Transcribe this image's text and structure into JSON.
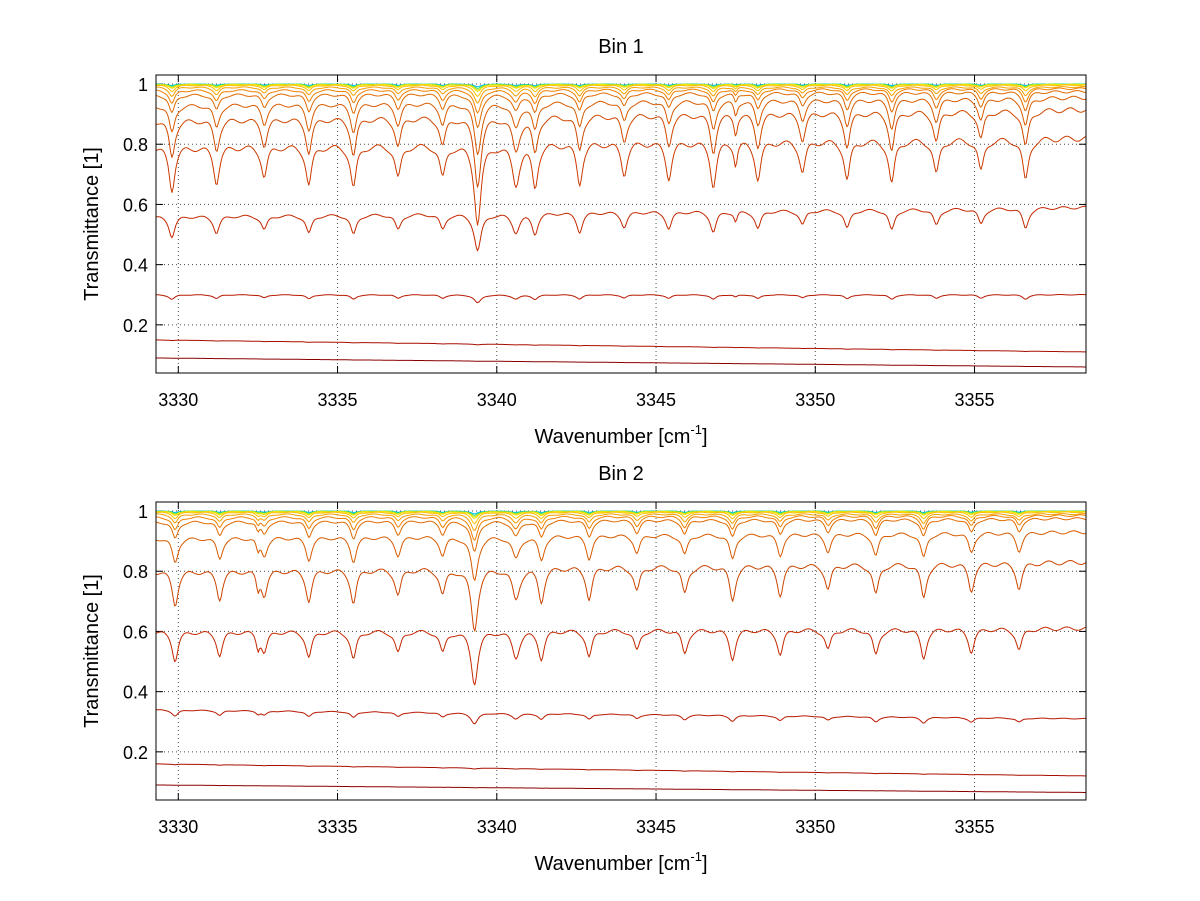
{
  "chart_data": [
    {
      "type": "line",
      "title": "Bin 1",
      "xlabel": "Wavenumber [cm",
      "xlabel_sup": "-1",
      "xlabel_suffix": "]",
      "ylabel": "Transmittance [1]",
      "xlim": [
        3329.3,
        3358.5
      ],
      "ylim": [
        0.04,
        1.03
      ],
      "xticks": [
        3330,
        3335,
        3340,
        3345,
        3350,
        3355
      ],
      "yticks": [
        0.2,
        0.4,
        0.6,
        0.8,
        1
      ],
      "ytick_labels": [
        "0.2",
        "0.4",
        "0.6",
        "0.8",
        "1"
      ],
      "grid": true,
      "line_spacing": 1.42,
      "line_centers": [
        3329.8,
        3331.2,
        3332.7,
        3334.1,
        3335.5,
        3336.9,
        3338.3,
        3341.2,
        3342.6,
        3344.0,
        3345.4,
        3346.8,
        3348.2,
        3349.6,
        3351.0,
        3352.4,
        3353.8,
        3355.2,
        3356.6
      ],
      "strong_line": 3339.4,
      "secondary_line": 3340.6,
      "extra_line": 3347.5,
      "series": [
        {
          "baseline": [
            1.0,
            1.0
          ],
          "depth": 0.005,
          "color": "#00bfff"
        },
        {
          "baseline": [
            1.0,
            1.0
          ],
          "depth": 0.008,
          "color": "#33dd66"
        },
        {
          "baseline": [
            0.999,
            0.999
          ],
          "depth": 0.01,
          "color": "#d8e61a"
        },
        {
          "baseline": [
            0.998,
            0.998
          ],
          "depth": 0.012,
          "color": "#f2e000"
        },
        {
          "baseline": [
            0.996,
            0.996
          ],
          "depth": 0.02,
          "color": "#ffc000"
        },
        {
          "baseline": [
            0.99,
            0.99
          ],
          "depth": 0.03,
          "color": "#f5a000"
        },
        {
          "baseline": [
            0.98,
            0.985
          ],
          "depth": 0.045,
          "color": "#f08000"
        },
        {
          "baseline": [
            0.965,
            0.975
          ],
          "depth": 0.065,
          "color": "#e06a00"
        },
        {
          "baseline": [
            0.93,
            0.955
          ],
          "depth": 0.1,
          "color": "#d85a00"
        },
        {
          "baseline": [
            0.88,
            0.915
          ],
          "depth": 0.14,
          "color": "#d04800"
        },
        {
          "baseline": [
            0.79,
            0.82
          ],
          "depth": 0.18,
          "color": "#cc3a00"
        },
        {
          "baseline": [
            0.56,
            0.59
          ],
          "depth": 0.12,
          "color": "#c42800"
        },
        {
          "baseline": [
            0.3,
            0.3
          ],
          "depth": 0.05,
          "color": "#b81800"
        },
        {
          "baseline": [
            0.15,
            0.11
          ],
          "depth": 0.01,
          "color": "#a80e00"
        },
        {
          "baseline": [
            0.09,
            0.06
          ],
          "depth": 0.004,
          "color": "#8a0000"
        }
      ]
    },
    {
      "type": "line",
      "title": "Bin 2",
      "xlabel": "Wavenumber [cm",
      "xlabel_sup": "-1",
      "xlabel_suffix": "]",
      "ylabel": "Transmittance [1]",
      "xlim": [
        3329.3,
        3358.5
      ],
      "ylim": [
        0.04,
        1.03
      ],
      "xticks": [
        3330,
        3335,
        3340,
        3345,
        3350,
        3355
      ],
      "yticks": [
        0.2,
        0.4,
        0.6,
        0.8,
        1
      ],
      "ytick_labels": [
        "0.2",
        "0.4",
        "0.6",
        "0.8",
        "1"
      ],
      "grid": true,
      "line_spacing": 1.42,
      "line_centers": [
        3329.9,
        3331.3,
        3332.7,
        3334.1,
        3335.5,
        3336.9,
        3338.3,
        3341.4,
        3342.9,
        3344.4,
        3345.9,
        3347.4,
        3348.9,
        3350.4,
        3351.9,
        3353.4,
        3354.9,
        3356.4
      ],
      "strong_line": 3339.3,
      "secondary_line": 3340.6,
      "extra_line": 3332.5,
      "series": [
        {
          "baseline": [
            1.0,
            1.0
          ],
          "depth": 0.005,
          "color": "#00bfff"
        },
        {
          "baseline": [
            1.0,
            1.0
          ],
          "depth": 0.008,
          "color": "#33dd66"
        },
        {
          "baseline": [
            0.999,
            0.999
          ],
          "depth": 0.01,
          "color": "#d8e61a"
        },
        {
          "baseline": [
            0.998,
            0.998
          ],
          "depth": 0.012,
          "color": "#f2e000"
        },
        {
          "baseline": [
            0.996,
            0.996
          ],
          "depth": 0.02,
          "color": "#ffc000"
        },
        {
          "baseline": [
            0.99,
            0.99
          ],
          "depth": 0.03,
          "color": "#f5a000"
        },
        {
          "baseline": [
            0.98,
            0.985
          ],
          "depth": 0.045,
          "color": "#f08000"
        },
        {
          "baseline": [
            0.965,
            0.975
          ],
          "depth": 0.06,
          "color": "#e06a00"
        },
        {
          "baseline": [
            0.91,
            0.93
          ],
          "depth": 0.09,
          "color": "#d85a00"
        },
        {
          "baseline": [
            0.8,
            0.83
          ],
          "depth": 0.14,
          "color": "#cc4400"
        },
        {
          "baseline": [
            0.6,
            0.61
          ],
          "depth": 0.16,
          "color": "#c42800"
        },
        {
          "baseline": [
            0.34,
            0.31
          ],
          "depth": 0.06,
          "color": "#b81800"
        },
        {
          "baseline": [
            0.16,
            0.12
          ],
          "depth": 0.012,
          "color": "#a80e00"
        },
        {
          "baseline": [
            0.09,
            0.065
          ],
          "depth": 0.004,
          "color": "#8a0000"
        }
      ]
    }
  ]
}
